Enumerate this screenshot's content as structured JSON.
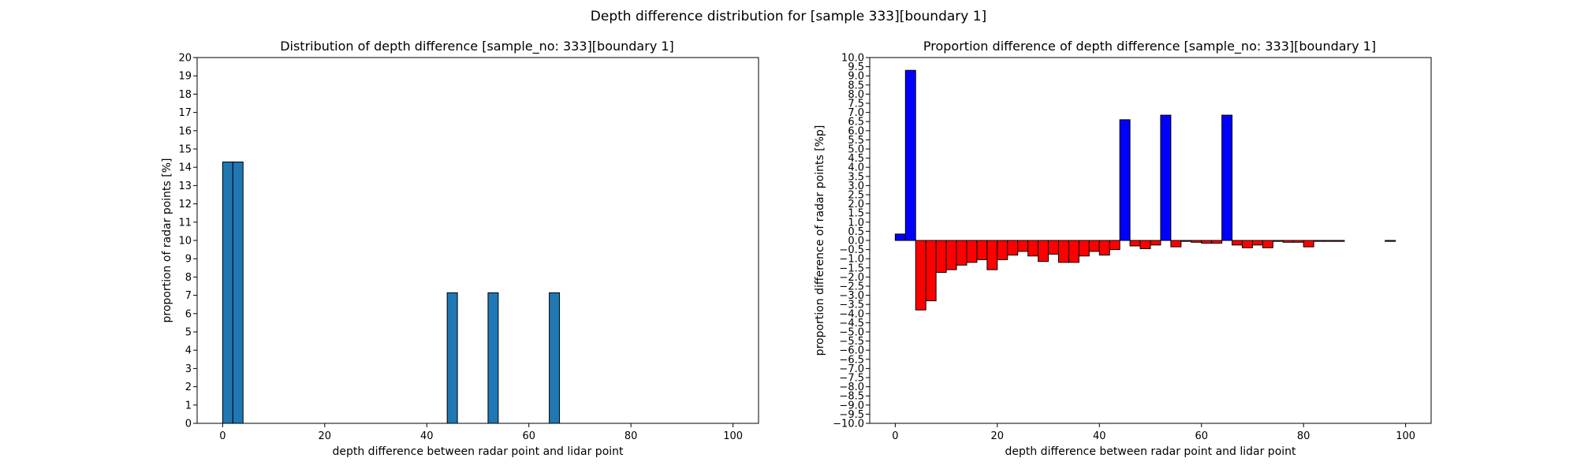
{
  "suptitle": "Depth difference distribution for [sample 333][boundary 1]",
  "chart_data": [
    {
      "type": "bar",
      "title": "Distribution of depth difference [sample_no: 333][boundary 1]",
      "xlabel": "depth difference between radar point and lidar point",
      "ylabel": "proportion of radar points [%]",
      "xlim": [
        -5,
        105
      ],
      "ylim": [
        0,
        20
      ],
      "xticks": [
        0,
        20,
        40,
        60,
        80,
        100
      ],
      "yticks": [
        0,
        1,
        2,
        3,
        4,
        5,
        6,
        7,
        8,
        9,
        10,
        11,
        12,
        13,
        14,
        15,
        16,
        17,
        18,
        19,
        20
      ],
      "bin_width": 2,
      "bar_color": "#1f77b4",
      "edge_color": "#000000",
      "bin_left_edges": [
        0,
        2,
        44,
        52,
        64
      ],
      "values": [
        14.29,
        14.29,
        7.14,
        7.14,
        7.14
      ]
    },
    {
      "type": "bar",
      "title": "Proportion difference of depth difference [sample_no: 333][boundary 1]",
      "xlabel": "depth difference between radar point and lidar point",
      "ylabel": "proportion difference of radar points [%p]",
      "xlim": [
        -5,
        105
      ],
      "ylim": [
        -10,
        10
      ],
      "xticks": [
        0,
        20,
        40,
        60,
        80,
        100
      ],
      "ytick_step": 0.5,
      "bin_width": 2,
      "positive_color": "#0000ff",
      "negative_color": "#ff0000",
      "edge_color": "#000000",
      "bin_left_edges": [
        0,
        2,
        4,
        6,
        8,
        10,
        12,
        14,
        16,
        18,
        20,
        22,
        24,
        26,
        28,
        30,
        32,
        34,
        36,
        38,
        40,
        42,
        44,
        46,
        48,
        50,
        52,
        54,
        56,
        58,
        60,
        62,
        64,
        66,
        68,
        70,
        72,
        74,
        76,
        78,
        80,
        82,
        84,
        86,
        88,
        90,
        92,
        94,
        96,
        98
      ],
      "values": [
        0.35,
        9.3,
        -3.8,
        -3.3,
        -1.75,
        -1.6,
        -1.35,
        -1.2,
        -1.05,
        -1.6,
        -1.05,
        -0.8,
        -0.6,
        -0.85,
        -1.15,
        -0.75,
        -1.2,
        -1.2,
        -0.85,
        -0.6,
        -0.8,
        -0.5,
        6.6,
        -0.3,
        -0.45,
        -0.25,
        6.85,
        -0.35,
        -0.05,
        -0.1,
        -0.15,
        -0.15,
        6.85,
        -0.25,
        -0.4,
        -0.25,
        -0.4,
        -0.05,
        -0.1,
        -0.1,
        -0.35,
        -0.05,
        -0.05,
        -0.05,
        0,
        0,
        0,
        0,
        -0.05,
        0
      ]
    }
  ]
}
